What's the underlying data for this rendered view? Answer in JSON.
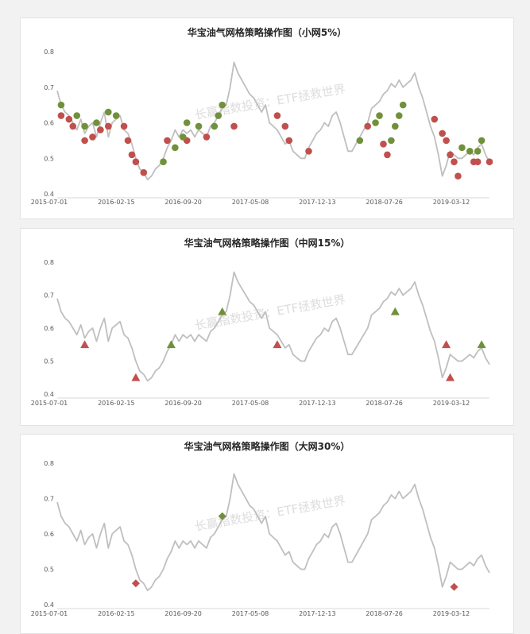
{
  "charts": [
    {
      "title": "华宝油气网格策略操作图（小网5%）",
      "marker": "circle",
      "chart_data": {
        "type": "line",
        "title": "华宝油气网格策略操作图（小网5%）",
        "x_tick_labels": [
          "2015-07-01",
          "2016-02-15",
          "2016-09-20",
          "2017-05-08",
          "2017-12-13",
          "2018-07-26",
          "2019-03-12"
        ],
        "y_tick_labels": [
          "0.4",
          "0.5",
          "0.6",
          "0.7",
          "0.8"
        ],
        "ylim": [
          0.4,
          0.8
        ],
        "grid": false,
        "series": [
          {
            "values": [
              0.69,
              0.65,
              0.63,
              0.62,
              0.6,
              0.58,
              0.61,
              0.57,
              0.59,
              0.6,
              0.56,
              0.6,
              0.63,
              0.56,
              0.6,
              0.61,
              0.62,
              0.58,
              0.57,
              0.54,
              0.5,
              0.47,
              0.46,
              0.44,
              0.45,
              0.47,
              0.48,
              0.5,
              0.53,
              0.55,
              0.58,
              0.56,
              0.58,
              0.57,
              0.58,
              0.56,
              0.58,
              0.57,
              0.56,
              0.59,
              0.6,
              0.62,
              0.64,
              0.65,
              0.7,
              0.77,
              0.74,
              0.72,
              0.7,
              0.68,
              0.67,
              0.65,
              0.63,
              0.65,
              0.6,
              0.59,
              0.58,
              0.56,
              0.54,
              0.55,
              0.52,
              0.51,
              0.5,
              0.5,
              0.53,
              0.55,
              0.57,
              0.58,
              0.6,
              0.59,
              0.62,
              0.63,
              0.6,
              0.56,
              0.52,
              0.52,
              0.54,
              0.56,
              0.58,
              0.6,
              0.64,
              0.65,
              0.66,
              0.68,
              0.69,
              0.71,
              0.7,
              0.72,
              0.7,
              0.71,
              0.72,
              0.74,
              0.7,
              0.67,
              0.63,
              0.59,
              0.56,
              0.51,
              0.45,
              0.48,
              0.52,
              0.51,
              0.5,
              0.5,
              0.51,
              0.52,
              0.51,
              0.53,
              0.54,
              0.51,
              0.49
            ]
          }
        ],
        "buy_points": [
          [
            1,
            0.65
          ],
          [
            5,
            0.62
          ],
          [
            7,
            0.59
          ],
          [
            10,
            0.6
          ],
          [
            13,
            0.63
          ],
          [
            15,
            0.62
          ],
          [
            27,
            0.49
          ],
          [
            30,
            0.53
          ],
          [
            32,
            0.56
          ],
          [
            33,
            0.6
          ],
          [
            36,
            0.59
          ],
          [
            40,
            0.59
          ],
          [
            41,
            0.62
          ],
          [
            42,
            0.65
          ],
          [
            77,
            0.55
          ],
          [
            81,
            0.6
          ],
          [
            82,
            0.62
          ],
          [
            85,
            0.55
          ],
          [
            86,
            0.59
          ],
          [
            87,
            0.62
          ],
          [
            88,
            0.65
          ],
          [
            103,
            0.53
          ],
          [
            105,
            0.52
          ],
          [
            107,
            0.52
          ],
          [
            108,
            0.55
          ]
        ],
        "sell_points": [
          [
            1,
            0.62
          ],
          [
            3,
            0.61
          ],
          [
            4,
            0.59
          ],
          [
            7,
            0.55
          ],
          [
            9,
            0.56
          ],
          [
            11,
            0.58
          ],
          [
            13,
            0.59
          ],
          [
            17,
            0.59
          ],
          [
            18,
            0.55
          ],
          [
            19,
            0.51
          ],
          [
            20,
            0.49
          ],
          [
            22,
            0.46
          ],
          [
            28,
            0.55
          ],
          [
            33,
            0.55
          ],
          [
            38,
            0.56
          ],
          [
            45,
            0.59
          ],
          [
            56,
            0.62
          ],
          [
            58,
            0.59
          ],
          [
            59,
            0.55
          ],
          [
            64,
            0.52
          ],
          [
            79,
            0.59
          ],
          [
            83,
            0.54
          ],
          [
            84,
            0.51
          ],
          [
            96,
            0.61
          ],
          [
            98,
            0.57
          ],
          [
            99,
            0.55
          ],
          [
            100,
            0.51
          ],
          [
            101,
            0.49
          ],
          [
            102,
            0.45
          ],
          [
            106,
            0.49
          ],
          [
            107,
            0.49
          ],
          [
            110,
            0.49
          ]
        ]
      }
    },
    {
      "title": "华宝油气网格策略操作图（中网15%）",
      "marker": "triangle",
      "chart_data": {
        "type": "line",
        "title": "华宝油气网格策略操作图（中网15%）",
        "x_tick_labels": [
          "2015-07-01",
          "2016-02-15",
          "2016-09-20",
          "2017-05-08",
          "2017-12-13",
          "2018-07-26",
          "2019-03-12"
        ],
        "y_tick_labels": [
          "0.4",
          "0.5",
          "0.6",
          "0.7",
          "0.8"
        ],
        "ylim": [
          0.4,
          0.8
        ],
        "grid": false,
        "series": [
          {
            "values": [
              0.69,
              0.65,
              0.63,
              0.62,
              0.6,
              0.58,
              0.61,
              0.57,
              0.59,
              0.6,
              0.56,
              0.6,
              0.63,
              0.56,
              0.6,
              0.61,
              0.62,
              0.58,
              0.57,
              0.54,
              0.5,
              0.47,
              0.46,
              0.44,
              0.45,
              0.47,
              0.48,
              0.5,
              0.53,
              0.55,
              0.58,
              0.56,
              0.58,
              0.57,
              0.58,
              0.56,
              0.58,
              0.57,
              0.56,
              0.59,
              0.6,
              0.62,
              0.64,
              0.65,
              0.7,
              0.77,
              0.74,
              0.72,
              0.7,
              0.68,
              0.67,
              0.65,
              0.63,
              0.65,
              0.6,
              0.59,
              0.58,
              0.56,
              0.54,
              0.55,
              0.52,
              0.51,
              0.5,
              0.5,
              0.53,
              0.55,
              0.57,
              0.58,
              0.6,
              0.59,
              0.62,
              0.63,
              0.6,
              0.56,
              0.52,
              0.52,
              0.54,
              0.56,
              0.58,
              0.6,
              0.64,
              0.65,
              0.66,
              0.68,
              0.69,
              0.71,
              0.7,
              0.72,
              0.7,
              0.71,
              0.72,
              0.74,
              0.7,
              0.67,
              0.63,
              0.59,
              0.56,
              0.51,
              0.45,
              0.48,
              0.52,
              0.51,
              0.5,
              0.5,
              0.51,
              0.52,
              0.51,
              0.53,
              0.54,
              0.51,
              0.49
            ]
          }
        ],
        "buy_points": [
          [
            29,
            0.55
          ],
          [
            42,
            0.65
          ],
          [
            86,
            0.65
          ],
          [
            108,
            0.55
          ]
        ],
        "sell_points": [
          [
            7,
            0.55
          ],
          [
            20,
            0.45
          ],
          [
            56,
            0.55
          ],
          [
            99,
            0.55
          ],
          [
            100,
            0.45
          ]
        ]
      }
    },
    {
      "title": "华宝油气网格策略操作图（大网30%）",
      "marker": "diamond",
      "chart_data": {
        "type": "line",
        "title": "华宝油气网格策略操作图（大网30%）",
        "x_tick_labels": [
          "2015-07-01",
          "2016-02-15",
          "2016-09-20",
          "2017-05-08",
          "2017-12-13",
          "2018-07-26",
          "2019-03-12"
        ],
        "y_tick_labels": [
          "0.4",
          "0.5",
          "0.6",
          "0.7",
          "0.8"
        ],
        "ylim": [
          0.4,
          0.8
        ],
        "grid": false,
        "series": [
          {
            "values": [
              0.69,
              0.65,
              0.63,
              0.62,
              0.6,
              0.58,
              0.61,
              0.57,
              0.59,
              0.6,
              0.56,
              0.6,
              0.63,
              0.56,
              0.6,
              0.61,
              0.62,
              0.58,
              0.57,
              0.54,
              0.5,
              0.47,
              0.46,
              0.44,
              0.45,
              0.47,
              0.48,
              0.5,
              0.53,
              0.55,
              0.58,
              0.56,
              0.58,
              0.57,
              0.58,
              0.56,
              0.58,
              0.57,
              0.56,
              0.59,
              0.6,
              0.62,
              0.64,
              0.65,
              0.7,
              0.77,
              0.74,
              0.72,
              0.7,
              0.68,
              0.67,
              0.65,
              0.63,
              0.65,
              0.6,
              0.59,
              0.58,
              0.56,
              0.54,
              0.55,
              0.52,
              0.51,
              0.5,
              0.5,
              0.53,
              0.55,
              0.57,
              0.58,
              0.6,
              0.59,
              0.62,
              0.63,
              0.6,
              0.56,
              0.52,
              0.52,
              0.54,
              0.56,
              0.58,
              0.6,
              0.64,
              0.65,
              0.66,
              0.68,
              0.69,
              0.71,
              0.7,
              0.72,
              0.7,
              0.71,
              0.72,
              0.74,
              0.7,
              0.67,
              0.63,
              0.59,
              0.56,
              0.51,
              0.45,
              0.48,
              0.52,
              0.51,
              0.5,
              0.5,
              0.51,
              0.52,
              0.51,
              0.53,
              0.54,
              0.51,
              0.49
            ]
          }
        ],
        "buy_points": [
          [
            42,
            0.65
          ]
        ],
        "sell_points": [
          [
            20,
            0.46
          ],
          [
            101,
            0.45
          ]
        ]
      }
    }
  ],
  "watermark": "长赢指数投资：ETF拯救世界",
  "colors": {
    "line": "#bfbfbf",
    "buy": "#70913a",
    "sell": "#c0504d",
    "axis_text": "#595959",
    "title": "#262626",
    "watermark": "#d9d9d9"
  }
}
